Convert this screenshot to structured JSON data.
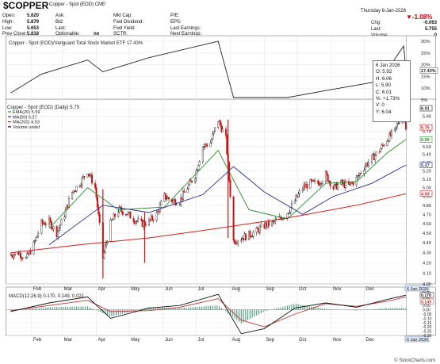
{
  "header": {
    "symbol": "$COPPER",
    "description": "Copper - Spot (EOD)",
    "exchange": "CME",
    "datetime": "Thursday  8-Jan-2026",
    "stats_left": [
      {
        "label": "Open:",
        "value": "5.820"
      },
      {
        "label": "High:",
        "value": "5.879"
      },
      {
        "label": "Low:",
        "value": "5.653"
      },
      {
        "label": "Prev Close:",
        "value": "5.818"
      }
    ],
    "stats_col2": [
      {
        "label": "Ask:",
        "value": ""
      },
      {
        "label": "Bid:",
        "value": ""
      },
      {
        "label": "Last:",
        "value": ""
      },
      {
        "label": "Optionable:",
        "value": "no"
      }
    ],
    "stats_col3": [
      {
        "label": "Mkt Cap:",
        "value": ""
      },
      {
        "label": "Fwd Dividend:",
        "value": ""
      },
      {
        "label": "Fwd Yield:",
        "value": ""
      },
      {
        "label": "SCTR:",
        "value": ""
      }
    ],
    "stats_col4": [
      {
        "label": "P/E:",
        "value": ""
      },
      {
        "label": "EPS:",
        "value": ""
      },
      {
        "label": "Last Earnings:",
        "value": ""
      },
      {
        "label": "Next Earnings:",
        "value": ""
      }
    ],
    "change_pct": "▼-1.08%",
    "stats_right": [
      {
        "label": "Chg:",
        "value": "-0.063"
      },
      {
        "label": "Last:",
        "value": "5.755"
      },
      {
        "label": "Volume:",
        "value": "0"
      }
    ],
    "colors": {
      "down": "#d00000"
    }
  },
  "legends": {
    "ratio": "Copper - Spot (EOD)/Vanguard Total Stock Market ETF 17.43%",
    "price_title": "Copper - Spot (EOD) (Daily) 5.75",
    "ema": "EMA(20) 5.59",
    "ma50": "MA(50) 5.27",
    "ma200": "MA(200) 4.93",
    "volume": "Volume undef",
    "macd": "MACD(12,26,9) 0.170, 0.149, 0.021",
    "watermark": "© StockCharts.com"
  },
  "tooltip": {
    "date": "6 Jan 2026",
    "rows": [
      "O: 5.92",
      "H: 6.06",
      "L: 5.90",
      "C: 6.01",
      "%: +1.73%",
      "V: 0",
      "Y: 6.04"
    ]
  },
  "axes": {
    "months": [
      "Feb",
      "Mar",
      "Apr",
      "May",
      "Jun",
      "Jul",
      "Aug",
      "Sep",
      "Oct",
      "Nov",
      "Dec"
    ],
    "date_flag": "6 Jan 2026",
    "ratio_ticks": [
      "30%",
      "25%",
      "20%",
      "15%",
      "10%",
      "5%"
    ],
    "ratio_flag": "17.43%",
    "price_ticks": [
      "6.00",
      "5.90",
      "5.70",
      "5.60",
      "5.50",
      "5.40",
      "5.30",
      "5.20",
      "5.10",
      "5.00",
      "4.90",
      "4.80",
      "4.70",
      "4.60",
      "4.50",
      "4.40",
      "4.30",
      "4.20",
      "4.10",
      "4.00"
    ],
    "price_flags": {
      "high": "6.01",
      "last": "5.75",
      "ema": "5.59",
      "ma50": "5.27",
      "ma200": "4.93"
    },
    "macd_ticks": [
      "0.20",
      "0.15",
      "0.10",
      "0.05",
      "0.00",
      "-0.05",
      "-0.10",
      "-0.15",
      "-0.20",
      "-0.25",
      "-0.30"
    ],
    "macd_flags": {
      "macd": "0.170",
      "signal": "0.149"
    }
  },
  "colors": {
    "up": "#1a1a1a",
    "down": "#d01010",
    "ema": "#2a8a2a",
    "ma50": "#2a2a8a",
    "ma200": "#d02020",
    "ratio_line": "#222222",
    "macd_line": "#111111",
    "signal_line": "#c0393b",
    "hist": "#4a9a7a"
  },
  "chart_data": {
    "type": "line",
    "x_axis": "date",
    "title": "Copper - Spot (EOD) (Daily) 5.75",
    "ylim": [
      4.0,
      6.06
    ],
    "log_scale": true,
    "grid": true,
    "price_series": [
      {
        "date": "2025-01-13",
        "close": 4.28
      },
      {
        "date": "2025-01-20",
        "close": 4.3
      },
      {
        "date": "2025-01-27",
        "close": 4.24
      },
      {
        "date": "2025-02-03",
        "close": 4.38
      },
      {
        "date": "2025-02-10",
        "close": 4.6
      },
      {
        "date": "2025-02-17",
        "close": 4.62
      },
      {
        "date": "2025-02-24",
        "close": 4.5
      },
      {
        "date": "2025-03-03",
        "close": 4.7
      },
      {
        "date": "2025-03-10",
        "close": 4.95
      },
      {
        "date": "2025-03-17",
        "close": 5.05
      },
      {
        "date": "2025-03-24",
        "close": 5.2
      },
      {
        "date": "2025-03-31",
        "close": 5.0
      },
      {
        "date": "2025-04-07",
        "close": 4.25
      },
      {
        "date": "2025-04-14",
        "close": 4.6
      },
      {
        "date": "2025-04-21",
        "close": 4.75
      },
      {
        "date": "2025-04-28",
        "close": 4.72
      },
      {
        "date": "2025-05-05",
        "close": 4.65
      },
      {
        "date": "2025-05-12",
        "close": 4.6
      },
      {
        "date": "2025-05-19",
        "close": 4.62
      },
      {
        "date": "2025-05-26",
        "close": 4.7
      },
      {
        "date": "2025-06-02",
        "close": 4.9
      },
      {
        "date": "2025-06-09",
        "close": 4.85
      },
      {
        "date": "2025-06-16",
        "close": 4.85
      },
      {
        "date": "2025-06-23",
        "close": 5.0
      },
      {
        "date": "2025-06-30",
        "close": 5.15
      },
      {
        "date": "2025-07-07",
        "close": 5.5
      },
      {
        "date": "2025-07-14",
        "close": 5.55
      },
      {
        "date": "2025-07-21",
        "close": 5.85
      },
      {
        "date": "2025-07-28",
        "close": 5.6
      },
      {
        "date": "2025-08-04",
        "close": 4.42
      },
      {
        "date": "2025-08-11",
        "close": 4.45
      },
      {
        "date": "2025-08-18",
        "close": 4.48
      },
      {
        "date": "2025-08-25",
        "close": 4.52
      },
      {
        "date": "2025-09-01",
        "close": 4.58
      },
      {
        "date": "2025-09-08",
        "close": 4.6
      },
      {
        "date": "2025-09-15",
        "close": 4.65
      },
      {
        "date": "2025-09-22",
        "close": 4.72
      },
      {
        "date": "2025-09-29",
        "close": 4.85
      },
      {
        "date": "2025-10-06",
        "close": 5.0
      },
      {
        "date": "2025-10-13",
        "close": 5.05
      },
      {
        "date": "2025-10-20",
        "close": 5.05
      },
      {
        "date": "2025-10-27",
        "close": 5.15
      },
      {
        "date": "2025-11-03",
        "close": 5.0
      },
      {
        "date": "2025-11-10",
        "close": 5.05
      },
      {
        "date": "2025-11-17",
        "close": 5.02
      },
      {
        "date": "2025-11-24",
        "close": 5.1
      },
      {
        "date": "2025-12-01",
        "close": 5.25
      },
      {
        "date": "2025-12-08",
        "close": 5.35
      },
      {
        "date": "2025-12-15",
        "close": 5.45
      },
      {
        "date": "2025-12-22",
        "close": 5.6
      },
      {
        "date": "2025-12-29",
        "close": 5.7
      },
      {
        "date": "2026-01-06",
        "close": 6.01
      },
      {
        "date": "2026-01-08",
        "close": 5.75
      }
    ],
    "ohlc_6_jan_2026": {
      "open": 5.92,
      "high": 6.06,
      "low": 5.9,
      "close": 6.01
    },
    "ema20_series": [
      {
        "date": "2025-02-17",
        "value": 4.55
      },
      {
        "date": "2025-03-24",
        "value": 5.0
      },
      {
        "date": "2025-04-21",
        "value": 4.75
      },
      {
        "date": "2025-06-02",
        "value": 4.78
      },
      {
        "date": "2025-07-21",
        "value": 5.45
      },
      {
        "date": "2025-08-18",
        "value": 4.75
      },
      {
        "date": "2025-09-22",
        "value": 4.65
      },
      {
        "date": "2025-10-27",
        "value": 5.05
      },
      {
        "date": "2025-11-24",
        "value": 5.07
      },
      {
        "date": "2025-12-22",
        "value": 5.42
      },
      {
        "date": "2026-01-08",
        "value": 5.59
      }
    ],
    "ma50_series": [
      {
        "date": "2025-02-17",
        "value": 4.38
      },
      {
        "date": "2025-04-07",
        "value": 4.8
      },
      {
        "date": "2025-05-19",
        "value": 4.72
      },
      {
        "date": "2025-07-07",
        "value": 4.92
      },
      {
        "date": "2025-08-04",
        "value": 5.25
      },
      {
        "date": "2025-09-01",
        "value": 4.95
      },
      {
        "date": "2025-10-06",
        "value": 4.7
      },
      {
        "date": "2025-11-03",
        "value": 4.9
      },
      {
        "date": "2025-12-08",
        "value": 5.05
      },
      {
        "date": "2026-01-08",
        "value": 5.27
      }
    ],
    "ma200_series": [
      {
        "date": "2025-01-13",
        "value": 4.3
      },
      {
        "date": "2025-03-17",
        "value": 4.38
      },
      {
        "date": "2025-05-19",
        "value": 4.45
      },
      {
        "date": "2025-07-21",
        "value": 4.55
      },
      {
        "date": "2025-09-22",
        "value": 4.66
      },
      {
        "date": "2025-11-24",
        "value": 4.8
      },
      {
        "date": "2026-01-08",
        "value": 4.93
      }
    ],
    "ratio_pct_series": [
      {
        "date": "2025-01-13",
        "value": 8
      },
      {
        "date": "2025-02-10",
        "value": 16
      },
      {
        "date": "2025-03-24",
        "value": 22
      },
      {
        "date": "2025-04-07",
        "value": 17
      },
      {
        "date": "2025-05-19",
        "value": 23
      },
      {
        "date": "2025-07-21",
        "value": 30
      },
      {
        "date": "2025-08-04",
        "value": 6
      },
      {
        "date": "2025-09-22",
        "value": 6
      },
      {
        "date": "2025-10-27",
        "value": 9
      },
      {
        "date": "2025-12-15",
        "value": 13
      },
      {
        "date": "2026-01-06",
        "value": 28
      },
      {
        "date": "2026-01-08",
        "value": 17.43
      }
    ],
    "macd_series": [
      {
        "date": "2025-01-13",
        "macd": -0.02,
        "signal": -0.01
      },
      {
        "date": "2025-02-17",
        "macd": 0.08,
        "signal": 0.05
      },
      {
        "date": "2025-03-24",
        "macd": 0.15,
        "signal": 0.11
      },
      {
        "date": "2025-04-14",
        "macd": -0.1,
        "signal": -0.02
      },
      {
        "date": "2025-05-19",
        "macd": 0.02,
        "signal": -0.01
      },
      {
        "date": "2025-06-16",
        "macd": 0.05,
        "signal": 0.03
      },
      {
        "date": "2025-07-21",
        "macd": 0.18,
        "signal": 0.13
      },
      {
        "date": "2025-08-11",
        "macd": -0.28,
        "signal": -0.12
      },
      {
        "date": "2025-09-01",
        "macd": -0.22,
        "signal": -0.2
      },
      {
        "date": "2025-09-29",
        "macd": 0.02,
        "signal": -0.05
      },
      {
        "date": "2025-10-27",
        "macd": 0.08,
        "signal": 0.07
      },
      {
        "date": "2025-11-24",
        "macd": 0.03,
        "signal": 0.04
      },
      {
        "date": "2025-12-22",
        "macd": 0.12,
        "signal": 0.1
      },
      {
        "date": "2026-01-08",
        "macd": 0.17,
        "signal": 0.149
      }
    ],
    "macd_ylim": [
      -0.3,
      0.2
    ]
  }
}
